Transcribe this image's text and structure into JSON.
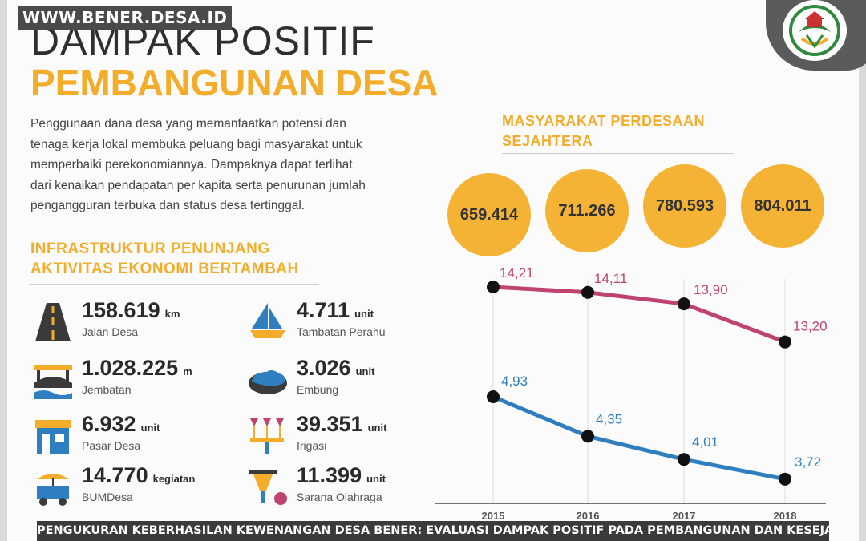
{
  "watermark": "WWW.BENER.DESA.ID",
  "title": {
    "line1": "DAMPAK POSITIF",
    "line2": "PEMBANGUNAN DESA"
  },
  "intro": [
    "Penggunaan dana desa yang memanfaatkan potensi dan",
    "tenaga kerja lokal membuka peluang bagi masyarakat untuk",
    "memperbaiki perekonomiannya. Dampaknya dapat terlihat",
    "dari kenaikan pendapatan per kapita serta penurunan jumlah",
    "pengangguran terbuka dan status desa tertinggal."
  ],
  "infra": {
    "heading": [
      "INFRASTRUKTUR PENUNJANG",
      "AKTIVITAS EKONOMI BERTAMBAH"
    ],
    "items": [
      {
        "value": "158.619",
        "unit": "km",
        "label": "Jalan Desa",
        "icon": "road-icon"
      },
      {
        "value": "1.028.225",
        "unit": "m",
        "label": "Jembatan",
        "icon": "bridge-icon"
      },
      {
        "value": "6.932",
        "unit": "unit",
        "label": "Pasar Desa",
        "icon": "market-icon"
      },
      {
        "value": "14.770",
        "unit": "kegiatan",
        "label": "BUMDesa",
        "icon": "cart-icon"
      },
      {
        "value": "4.711",
        "unit": "unit",
        "label": "Tambatan Perahu",
        "icon": "boat-icon"
      },
      {
        "value": "3.026",
        "unit": "unit",
        "label": "Embung",
        "icon": "pond-icon"
      },
      {
        "value": "39.351",
        "unit": "unit",
        "label": "Irigasi",
        "icon": "irrigation-icon"
      },
      {
        "value": "11.399",
        "unit": "unit",
        "label": "Sarana Olahraga",
        "icon": "sport-icon"
      }
    ]
  },
  "welfare": {
    "heading": [
      "MASYARAKAT PERDESAAN",
      "SEJAHTERA"
    ]
  },
  "colors": {
    "accent": "#f3ad2a",
    "circle": "#f5b335",
    "pink": "#c0426e",
    "blue": "#2f7fc0"
  },
  "chart_data": {
    "type": "line",
    "x": [
      "2015",
      "2016",
      "2017",
      "2018"
    ],
    "bubbles": [
      "659.414",
      "711.266",
      "780.593",
      "804.011"
    ],
    "series": [
      {
        "values": [
          14.21,
          14.11,
          13.9,
          13.2
        ],
        "labels": [
          "14,21",
          "14,11",
          "13,90",
          "13,20"
        ],
        "color": "#c0426e"
      },
      {
        "values": [
          4.93,
          4.35,
          4.01,
          3.72
        ],
        "labels": [
          "4,93",
          "4,35",
          "4,01",
          "3,72"
        ],
        "color": "#2f7fc0"
      }
    ],
    "grid": "vertical"
  },
  "caption": "PENGUKURAN KEBERHASILAN KEWENANGAN DESA BENER: EVALUASI DAMPAK POSITIF PADA PEMBANGUNAN DAN KESEJAHTERAAN MASYARAKAT"
}
